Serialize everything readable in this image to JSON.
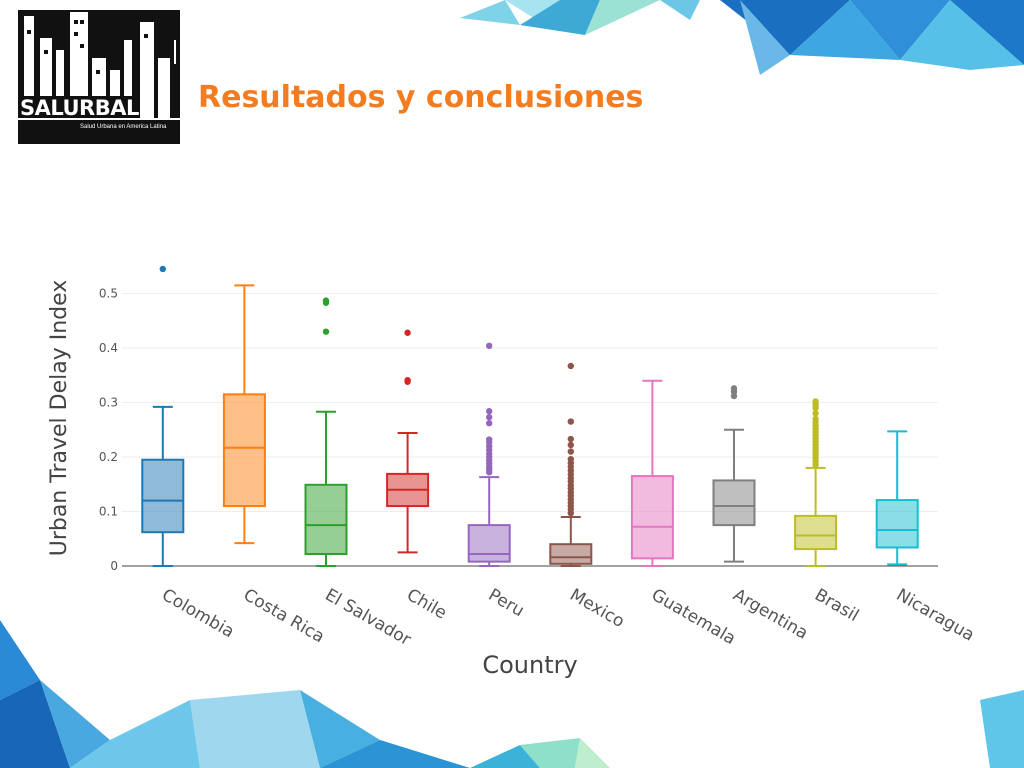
{
  "slide": {
    "title": "Resultados y conclusiones",
    "logo": {
      "name": "SALURBAL",
      "tagline": "Salud Urbana en America Latina"
    },
    "accent_color": "#f47c20"
  },
  "chart_data": {
    "type": "box",
    "title": "",
    "xlabel": "Country",
    "ylabel": "Urban Travel Delay Index",
    "ylim": [
      0,
      0.55
    ],
    "yticks": [
      0,
      0.1,
      0.2,
      0.3,
      0.4,
      0.5
    ],
    "ytick_labels": [
      "0",
      "0.1",
      "0.2",
      "0.3",
      "0.4",
      "0.5"
    ],
    "grid": true,
    "legend": "none",
    "categories": [
      "Colombia",
      "Costa Rica",
      "El Salvador",
      "Chile",
      "Peru",
      "Mexico",
      "Guatemala",
      "Argentina",
      "Brasil",
      "Nicaragua"
    ],
    "series": [
      {
        "category": "Colombia",
        "color": "#1f77b4",
        "lower_whisker": 0.0,
        "q1": 0.062,
        "median": 0.12,
        "q3": 0.195,
        "upper_whisker": 0.292,
        "outliers": [
          0.545
        ]
      },
      {
        "category": "Costa Rica",
        "color": "#ff7f0e",
        "lower_whisker": 0.042,
        "q1": 0.11,
        "median": 0.217,
        "q3": 0.315,
        "upper_whisker": 0.515,
        "outliers": []
      },
      {
        "category": "El Salvador",
        "color": "#2ca02c",
        "lower_whisker": 0.0,
        "q1": 0.022,
        "median": 0.075,
        "q3": 0.149,
        "upper_whisker": 0.283,
        "outliers": [
          0.43,
          0.483,
          0.487
        ]
      },
      {
        "category": "Chile",
        "color": "#d62728",
        "lower_whisker": 0.025,
        "q1": 0.11,
        "median": 0.14,
        "q3": 0.169,
        "upper_whisker": 0.244,
        "outliers": [
          0.338,
          0.341,
          0.428
        ]
      },
      {
        "category": "Peru",
        "color": "#9467bd",
        "lower_whisker": 0.0,
        "q1": 0.008,
        "median": 0.022,
        "q3": 0.075,
        "upper_whisker": 0.163,
        "outliers": [
          0.172,
          0.177,
          0.182,
          0.188,
          0.194,
          0.2,
          0.206,
          0.213,
          0.22,
          0.227,
          0.232,
          0.262,
          0.273,
          0.284,
          0.404
        ]
      },
      {
        "category": "Mexico",
        "color": "#8c564b",
        "lower_whisker": 0.0,
        "q1": 0.004,
        "median": 0.016,
        "q3": 0.04,
        "upper_whisker": 0.09,
        "outliers": [
          0.097,
          0.104,
          0.11,
          0.116,
          0.122,
          0.129,
          0.135,
          0.142,
          0.148,
          0.155,
          0.161,
          0.168,
          0.175,
          0.182,
          0.189,
          0.196,
          0.21,
          0.222,
          0.233,
          0.265,
          0.367
        ]
      },
      {
        "category": "Guatemala",
        "color": "#e377c2",
        "lower_whisker": 0.0,
        "q1": 0.014,
        "median": 0.072,
        "q3": 0.165,
        "upper_whisker": 0.34,
        "outliers": []
      },
      {
        "category": "Argentina",
        "color": "#7f7f7f",
        "lower_whisker": 0.008,
        "q1": 0.075,
        "median": 0.11,
        "q3": 0.157,
        "upper_whisker": 0.25,
        "outliers": [
          0.312,
          0.32,
          0.326
        ]
      },
      {
        "category": "Brasil",
        "color": "#bcbd22",
        "lower_whisker": 0.0,
        "q1": 0.031,
        "median": 0.056,
        "q3": 0.092,
        "upper_whisker": 0.18,
        "outliers": [
          0.186,
          0.192,
          0.198,
          0.204,
          0.21,
          0.216,
          0.222,
          0.228,
          0.234,
          0.24,
          0.246,
          0.252,
          0.258,
          0.264,
          0.27,
          0.28,
          0.29,
          0.296,
          0.302
        ]
      },
      {
        "category": "Nicaragua",
        "color": "#17becf",
        "lower_whisker": 0.003,
        "q1": 0.034,
        "median": 0.066,
        "q3": 0.121,
        "upper_whisker": 0.247,
        "outliers": []
      }
    ]
  }
}
